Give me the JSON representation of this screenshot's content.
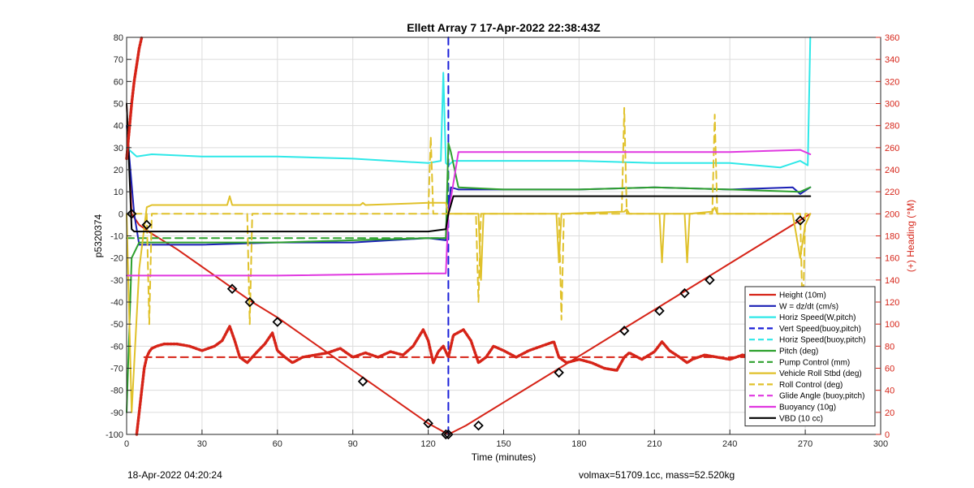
{
  "chart_data": {
    "type": "line",
    "title": "Ellett Array 7 17-Apr-2022 22:38:43Z",
    "xlabel": "Time (minutes)",
    "ylabel": "p5320374",
    "ylabel_right": "(+) Heading (°M)",
    "xlim": [
      0,
      300
    ],
    "ylim": [
      -100,
      80
    ],
    "ylim_right": [
      0,
      360
    ],
    "x_ticks": [
      0,
      30,
      60,
      90,
      120,
      150,
      180,
      210,
      240,
      270,
      300
    ],
    "y_ticks": [
      -100,
      -90,
      -80,
      -70,
      -60,
      -50,
      -40,
      -30,
      -20,
      -10,
      0,
      10,
      20,
      30,
      40,
      50,
      60,
      70,
      80
    ],
    "y_ticks_right": [
      0,
      20,
      40,
      60,
      80,
      100,
      120,
      140,
      160,
      180,
      200,
      220,
      240,
      260,
      280,
      300,
      320,
      340,
      360
    ],
    "grid": true,
    "legend_position": "bottom-right",
    "series": [
      {
        "name": "Height (10m)",
        "color": "#d62418",
        "style": "solid",
        "width": 2,
        "x": [
          0,
          2,
          5,
          10,
          20,
          30,
          40,
          50,
          60,
          70,
          80,
          90,
          100,
          110,
          120,
          128,
          135,
          145,
          155,
          165,
          175,
          185,
          195,
          205,
          215,
          225,
          235,
          245,
          255,
          265,
          272
        ],
        "y": [
          50,
          0,
          -5,
          -9,
          -16,
          -24,
          -32,
          -40,
          -47,
          -55,
          -63,
          -71,
          -79,
          -87,
          -95,
          -100,
          -96,
          -89,
          -82,
          -75,
          -68,
          -61,
          -54,
          -47,
          -40,
          -33,
          -26,
          -19,
          -12,
          -5,
          0
        ]
      },
      {
        "name": "W = dz/dt (cm/s)",
        "color": "#1a1fb5",
        "style": "solid",
        "width": 2,
        "x": [
          0,
          3,
          5,
          10,
          30,
          60,
          90,
          120,
          127,
          128,
          129,
          132,
          150,
          180,
          210,
          240,
          265,
          268,
          272
        ],
        "y": [
          40,
          0,
          -14,
          -14,
          -14,
          -13,
          -13,
          -11,
          -12,
          2,
          12,
          11,
          11,
          11,
          12,
          11,
          12,
          9,
          12
        ]
      },
      {
        "name": "Horiz Speed(W,pitch)",
        "color": "#2ee8e8",
        "style": "solid",
        "width": 2,
        "x": [
          0,
          2,
          4,
          10,
          30,
          60,
          90,
          120,
          125,
          126,
          127,
          128,
          130,
          150,
          180,
          210,
          240,
          260,
          268,
          271,
          272
        ],
        "y": [
          30,
          28,
          26,
          27,
          26,
          26,
          25,
          23,
          24,
          64,
          23,
          22,
          24,
          24,
          24,
          23,
          23,
          21,
          24,
          22,
          80
        ]
      },
      {
        "name": "Vert Speed(buoy,pitch)",
        "color": "#1a1fd8",
        "style": "dashed",
        "width": 2,
        "x": [
          128,
          128
        ],
        "y": [
          -100,
          80
        ]
      },
      {
        "name": "Horiz Speed(buoy,pitch)",
        "color": "#2ee8e8",
        "style": "dashed",
        "width": 2,
        "x": [],
        "y": []
      },
      {
        "name": "Pitch (deg)",
        "color": "#2ea12e",
        "style": "solid",
        "width": 2,
        "x": [
          0,
          2,
          5,
          10,
          30,
          60,
          90,
          120,
          127,
          128,
          129,
          132,
          150,
          180,
          210,
          240,
          268,
          272
        ],
        "y": [
          -90,
          -20,
          -13,
          -13,
          -13,
          -13,
          -12,
          -11,
          -11,
          32,
          28,
          12,
          11,
          11,
          12,
          11,
          10,
          12
        ]
      },
      {
        "name": "Pump Control (mm)",
        "color": "#2ea12e",
        "style": "dashed",
        "width": 2,
        "x": [
          0,
          127,
          128
        ],
        "y": [
          -11,
          -11,
          20
        ]
      },
      {
        "name": "Vehicle Roll Stbd (deg)",
        "color": "#e0c12a",
        "style": "solid",
        "width": 2,
        "x": [
          0,
          2,
          5,
          8,
          10,
          40,
          41,
          42,
          43,
          60,
          93,
          94,
          95,
          120,
          126,
          127,
          128,
          130,
          140,
          141,
          142,
          150,
          171,
          172,
          173,
          198,
          199,
          200,
          212,
          213,
          214,
          222,
          223,
          224,
          233,
          234,
          235,
          265,
          268,
          270,
          272
        ],
        "y": [
          0,
          -90,
          -25,
          3,
          4,
          4,
          8,
          4,
          4,
          4,
          4,
          5,
          4,
          5,
          5,
          5,
          0,
          0,
          0,
          -30,
          0,
          0,
          0,
          -22,
          0,
          1,
          2,
          0,
          0,
          -22,
          0,
          0,
          -22,
          0,
          1,
          3,
          0,
          0,
          -20,
          -5,
          0
        ]
      },
      {
        "name": "Roll Control (deg)",
        "color": "#e0c12a",
        "style": "dashed",
        "width": 2,
        "x": [
          3,
          8,
          9,
          10,
          48,
          49,
          50,
          51,
          120,
          121,
          122,
          126,
          128,
          130,
          139,
          140,
          141,
          150,
          172,
          173,
          174,
          197,
          198,
          199,
          233,
          234,
          235,
          268,
          269,
          270,
          272
        ],
        "y": [
          0,
          0,
          -50,
          0,
          0,
          -50,
          0,
          0,
          0,
          35,
          0,
          0,
          0,
          0,
          0,
          -40,
          0,
          0,
          0,
          -48,
          0,
          0,
          48,
          0,
          0,
          45,
          0,
          0,
          -50,
          0,
          0
        ]
      },
      {
        "name": "Glide Angle (buoy,pitch)",
        "color": "#e038e0",
        "style": "dashed",
        "width": 2,
        "x": [],
        "y": []
      },
      {
        "name": "Buoyancy (10g)",
        "color": "#e038e0",
        "style": "solid",
        "width": 2,
        "x": [
          0,
          3,
          10,
          60,
          120,
          127,
          128,
          132,
          180,
          240,
          268,
          272
        ],
        "y": [
          -28,
          -28,
          -28,
          -28,
          -27,
          -27,
          0,
          28,
          28,
          28,
          29,
          27
        ]
      },
      {
        "name": "VBD (10 cc)",
        "color": "#000000",
        "style": "solid",
        "width": 2,
        "x": [
          0,
          2,
          3,
          5,
          10,
          60,
          120,
          127,
          128,
          130,
          180,
          240,
          272
        ],
        "y": [
          50,
          -7,
          -8,
          -8,
          -8,
          -8,
          -8,
          -7,
          0,
          8,
          8,
          8,
          8
        ]
      },
      {
        "name": "",
        "axis": "right",
        "color": "#d62418",
        "style": "dotted-heavy",
        "width": 3,
        "x": [
          4,
          5,
          6,
          7,
          8,
          9,
          10,
          12,
          15,
          20,
          25,
          30,
          35,
          38,
          41,
          43,
          45,
          48,
          52,
          55,
          58,
          60,
          63,
          66,
          70,
          75,
          80,
          85,
          90,
          95,
          100,
          105,
          110,
          114,
          118,
          120,
          122,
          124,
          126,
          128,
          130,
          134,
          137,
          140,
          143,
          146,
          150,
          155,
          160,
          165,
          170,
          172,
          175,
          180,
          185,
          190,
          195,
          198,
          200,
          205,
          210,
          213,
          216,
          220,
          223,
          225,
          230,
          235,
          240,
          245,
          250,
          255,
          260,
          265,
          268,
          270
        ],
        "y": [
          0,
          20,
          40,
          60,
          70,
          75,
          78,
          80,
          82,
          82,
          80,
          76,
          80,
          85,
          98,
          85,
          70,
          65,
          75,
          82,
          92,
          76,
          70,
          65,
          70,
          72,
          74,
          78,
          70,
          74,
          70,
          75,
          72,
          80,
          95,
          85,
          65,
          75,
          80,
          70,
          90,
          95,
          85,
          65,
          70,
          80,
          76,
          70,
          76,
          80,
          84,
          70,
          65,
          68,
          65,
          60,
          58,
          70,
          74,
          68,
          75,
          84,
          76,
          70,
          65,
          68,
          72,
          70,
          68,
          72,
          70,
          75,
          70,
          80,
          85,
          70
        ]
      },
      {
        "name": "",
        "axis": "right",
        "color": "#d62418",
        "style": "dashed",
        "width": 2,
        "x": [
          7,
          270
        ],
        "y": [
          70,
          70
        ]
      },
      {
        "name": "",
        "axis": "right",
        "color": "#d62418",
        "style": "dotted-heavy",
        "width": 3,
        "x": [
          0,
          1,
          2,
          3,
          4,
          5,
          6
        ],
        "y": [
          250,
          275,
          300,
          320,
          335,
          350,
          360
        ]
      }
    ],
    "markers": {
      "color": "#000000",
      "x": [
        2,
        8,
        42,
        49,
        60,
        94,
        120,
        127,
        128,
        140,
        172,
        198,
        212,
        222,
        232,
        268
      ],
      "y": [
        0,
        -5,
        -34,
        -40,
        -49,
        -76,
        -95,
        -100,
        -100,
        -96,
        -72,
        -53,
        -44,
        -36,
        -30,
        -3
      ]
    }
  },
  "footer": {
    "left": "18-Apr-2022 04:20:24",
    "right": "volmax=51709.1cc, mass=52.520kg"
  }
}
